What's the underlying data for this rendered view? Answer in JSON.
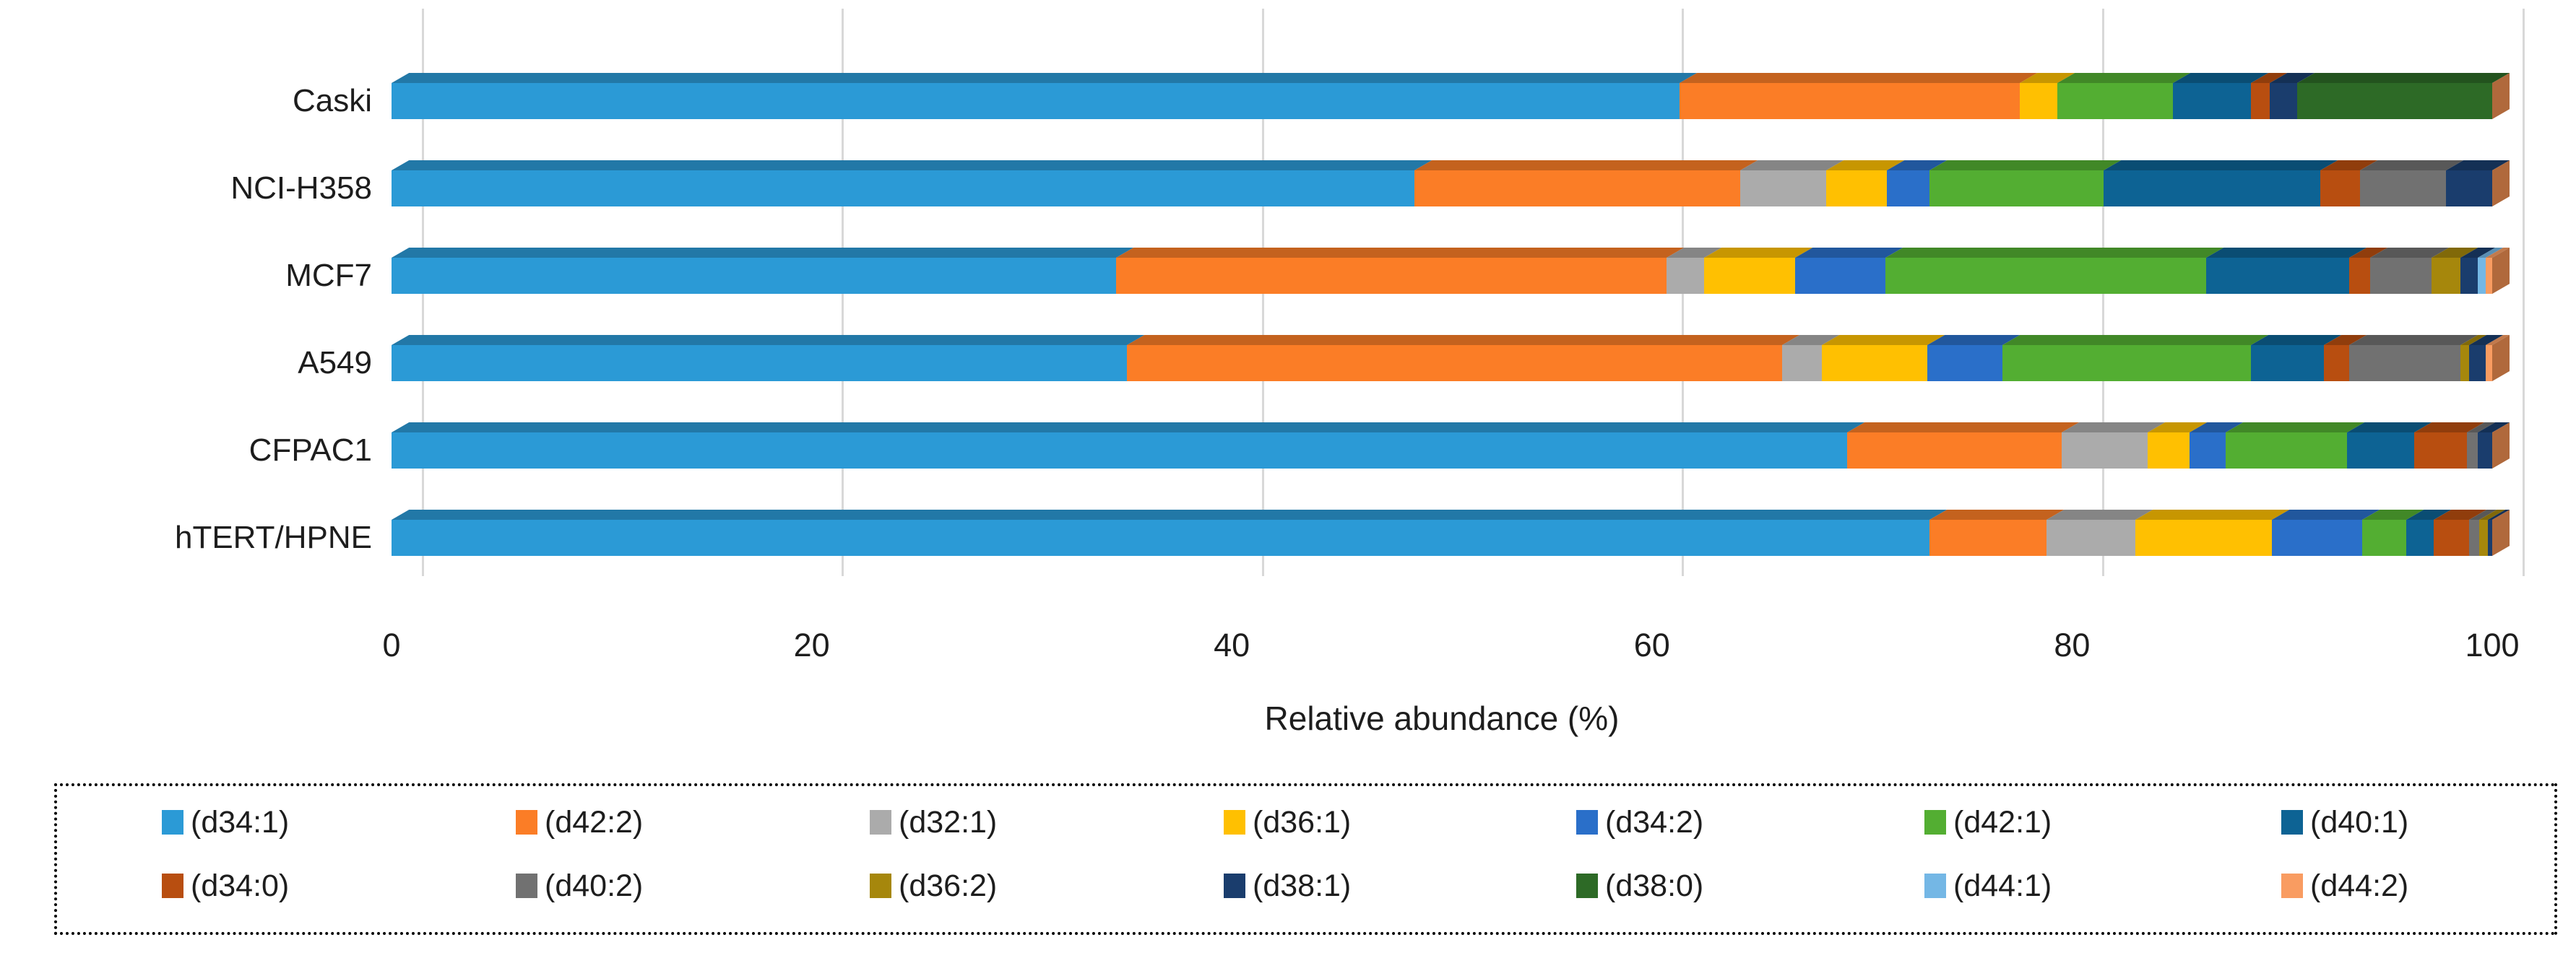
{
  "chart_data": {
    "type": "bar",
    "subtype": "horizontal-stacked-3d",
    "title": "",
    "xlabel": "Relative abundance (%)",
    "ylabel": "",
    "xlim": [
      0,
      100
    ],
    "x_ticks": [
      0,
      20,
      40,
      60,
      80,
      100
    ],
    "grid": true,
    "legend_position": "bottom",
    "categories": [
      "Caski",
      "NCI-H358",
      "MCF7",
      "A549",
      "CFPAC1",
      "hTERT/HPNE"
    ],
    "series": [
      {
        "name": "(d34:1)",
        "color": "#2B9AD6",
        "values": [
          61.3,
          48.7,
          34.5,
          35.0,
          69.3,
          73.2
        ]
      },
      {
        "name": "(d42:2)",
        "color": "#FB7D26",
        "values": [
          16.2,
          15.5,
          26.2,
          31.2,
          10.2,
          5.6
        ]
      },
      {
        "name": "(d32:1)",
        "color": "#ABABAB",
        "values": [
          0,
          4.1,
          1.8,
          1.9,
          4.1,
          4.2
        ]
      },
      {
        "name": "(d36:1)",
        "color": "#FFC001",
        "values": [
          1.8,
          2.9,
          4.3,
          5.0,
          2.0,
          6.5
        ]
      },
      {
        "name": "(d34:2)",
        "color": "#2A6FC9",
        "values": [
          0,
          2.0,
          4.3,
          3.6,
          1.7,
          4.3
        ]
      },
      {
        "name": "(d42:1)",
        "color": "#53AE32",
        "values": [
          5.5,
          8.3,
          15.3,
          11.8,
          5.8,
          2.1
        ]
      },
      {
        "name": "(d40:1)",
        "color": "#0D6394",
        "values": [
          3.7,
          10.3,
          6.8,
          3.5,
          3.2,
          1.3
        ]
      },
      {
        "name": "(d34:0)",
        "color": "#B84E10",
        "values": [
          0.9,
          1.9,
          1.0,
          1.2,
          2.5,
          1.7
        ]
      },
      {
        "name": "(d40:2)",
        "color": "#717171",
        "values": [
          0,
          4.1,
          2.9,
          5.3,
          0.5,
          0.5
        ]
      },
      {
        "name": "(d36:2)",
        "color": "#A6870C",
        "values": [
          0,
          0,
          1.4,
          0.4,
          0,
          0.4
        ]
      },
      {
        "name": "(d38:1)",
        "color": "#1A3D6D",
        "values": [
          1.3,
          2.2,
          0.8,
          0.8,
          0.7,
          0.2
        ]
      },
      {
        "name": "(d38:0)",
        "color": "#2D6A26",
        "values": [
          9.3,
          0,
          0,
          0,
          0,
          0
        ]
      },
      {
        "name": "(d44:1)",
        "color": "#74B7E5",
        "values": [
          0,
          0,
          0.4,
          0,
          0,
          0
        ]
      },
      {
        "name": "(d44:2)",
        "color": "#F99C61",
        "values": [
          0,
          0,
          0.3,
          0.3,
          0,
          0
        ]
      }
    ],
    "legend_rows": [
      [
        "(d34:1)",
        "(d42:2)",
        "(d32:1)",
        "(d36:1)",
        "(d34:2)",
        "(d42:1)",
        "(d40:1)"
      ],
      [
        "(d34:0)",
        "(d40:2)",
        "(d36:2)",
        "(d38:1)",
        "(d38:0)",
        "(d44:1)",
        "(d44:2)"
      ]
    ],
    "bar_side_shade_color": "#B0693C",
    "gridline_color": "#D8D8D8"
  }
}
